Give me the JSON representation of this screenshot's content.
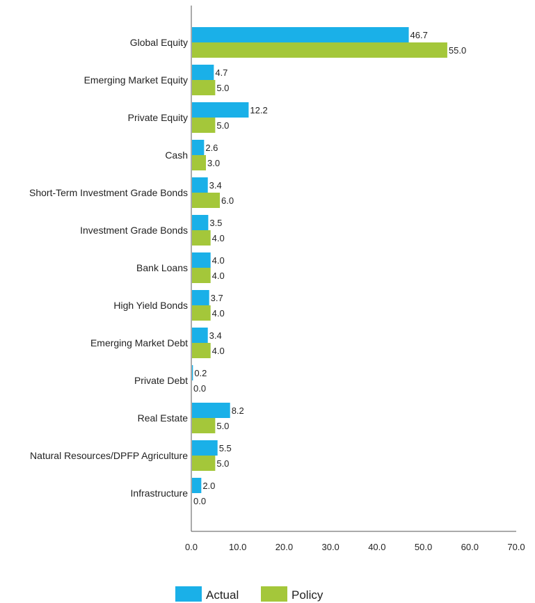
{
  "chart_data": {
    "type": "bar",
    "orientation": "horizontal",
    "title": "",
    "xlabel": "",
    "ylabel": "",
    "xlim": [
      0,
      70
    ],
    "xticks": [
      0,
      10,
      20,
      30,
      40,
      50,
      60,
      70
    ],
    "xtick_labels": [
      "0.0",
      "10.0",
      "20.0",
      "30.0",
      "40.0",
      "50.0",
      "60.0",
      "70.0"
    ],
    "grid": false,
    "legend_position": "bottom",
    "categories": [
      "Global Equity",
      "Emerging Market Equity",
      "Private Equity",
      "Cash",
      "Short-Term Investment Grade Bonds",
      "Investment Grade Bonds",
      "Bank Loans",
      "High Yield Bonds",
      "Emerging Market Debt",
      "Private Debt",
      "Real Estate",
      "Natural Resources/DPFP Agriculture",
      "Infrastructure"
    ],
    "series": [
      {
        "name": "Actual",
        "color": "#1ab0e8",
        "values": [
          46.7,
          4.7,
          12.2,
          2.6,
          3.4,
          3.5,
          4.0,
          3.7,
          3.4,
          0.2,
          8.2,
          5.5,
          2.0
        ],
        "labels": [
          "46.7",
          "4.7",
          "12.2",
          "2.6",
          "3.4",
          "3.5",
          "4.0",
          "3.7",
          "3.4",
          "0.2",
          "8.2",
          "5.5",
          "2.0"
        ]
      },
      {
        "name": "Policy",
        "color": "#a4c73a",
        "values": [
          55.0,
          5.0,
          5.0,
          3.0,
          6.0,
          4.0,
          4.0,
          4.0,
          4.0,
          0.0,
          5.0,
          5.0,
          0.0
        ],
        "labels": [
          "55.0",
          "5.0",
          "5.0",
          "3.0",
          "6.0",
          "4.0",
          "4.0",
          "4.0",
          "4.0",
          "0.0",
          "5.0",
          "5.0",
          "0.0"
        ]
      }
    ]
  }
}
